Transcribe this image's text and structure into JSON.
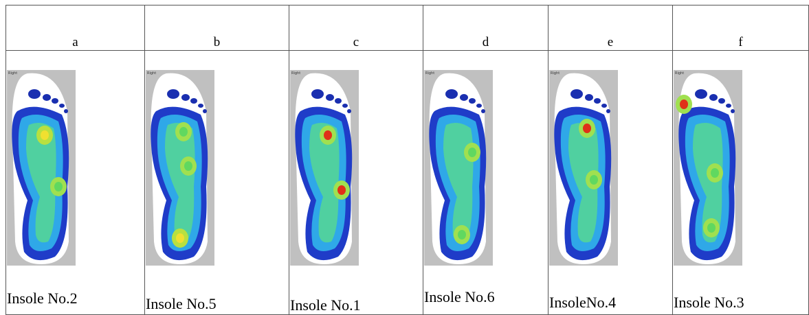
{
  "table": {
    "columns": [
      {
        "header": "a",
        "map_label": "Right",
        "caption": "Insole No.2"
      },
      {
        "header": "b",
        "map_label": "Right",
        "caption": "Insole No.5"
      },
      {
        "header": "c",
        "map_label": "Right",
        "caption": "Insole No.1"
      },
      {
        "header": "d",
        "map_label": "Right",
        "caption": "Insole No.6"
      },
      {
        "header": "e",
        "map_label": "Right",
        "caption": "InsoleNo.4"
      },
      {
        "header": "f",
        "map_label": "Right",
        "caption": "Insole No.3"
      }
    ]
  }
}
